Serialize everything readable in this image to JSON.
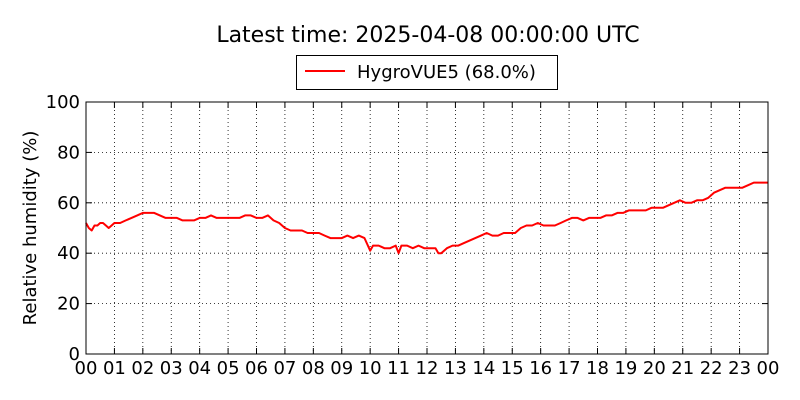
{
  "chart_data": {
    "type": "line",
    "title": "Latest time: 2025-04-08 00:00:00 UTC",
    "ylabel": "Relative humidity (%)",
    "xlabel": "",
    "ylim": [
      0,
      100
    ],
    "xlim": [
      0,
      24
    ],
    "grid": true,
    "legend_position": "top-center",
    "yticks": [
      "0",
      "20",
      "40",
      "60",
      "80",
      "100"
    ],
    "xticks": [
      "00",
      "01",
      "02",
      "03",
      "04",
      "05",
      "06",
      "07",
      "08",
      "09",
      "10",
      "11",
      "12",
      "13",
      "14",
      "15",
      "16",
      "17",
      "18",
      "19",
      "20",
      "21",
      "22",
      "23",
      "00"
    ],
    "series": [
      {
        "name": "HygroVUE5 (68.0%)",
        "color": "#ff0000",
        "x": [
          0.0,
          0.1,
          0.2,
          0.3,
          0.4,
          0.5,
          0.6,
          0.7,
          0.8,
          0.9,
          1.0,
          1.2,
          1.4,
          1.6,
          1.8,
          2.0,
          2.2,
          2.4,
          2.6,
          2.8,
          3.0,
          3.2,
          3.4,
          3.6,
          3.8,
          4.0,
          4.2,
          4.4,
          4.6,
          4.8,
          5.0,
          5.2,
          5.4,
          5.6,
          5.8,
          6.0,
          6.2,
          6.4,
          6.6,
          6.8,
          7.0,
          7.2,
          7.4,
          7.6,
          7.8,
          8.0,
          8.2,
          8.4,
          8.6,
          8.8,
          9.0,
          9.2,
          9.4,
          9.6,
          9.8,
          10.0,
          10.1,
          10.3,
          10.5,
          10.7,
          10.9,
          11.0,
          11.1,
          11.3,
          11.5,
          11.7,
          11.9,
          12.1,
          12.3,
          12.4,
          12.5,
          12.7,
          12.9,
          13.1,
          13.3,
          13.5,
          13.7,
          13.9,
          14.1,
          14.3,
          14.5,
          14.7,
          14.9,
          15.1,
          15.3,
          15.5,
          15.7,
          15.9,
          16.1,
          16.3,
          16.5,
          16.7,
          16.9,
          17.1,
          17.3,
          17.5,
          17.7,
          17.9,
          18.1,
          18.3,
          18.5,
          18.7,
          18.9,
          19.1,
          19.3,
          19.5,
          19.7,
          19.9,
          20.1,
          20.3,
          20.5,
          20.7,
          20.9,
          21.1,
          21.3,
          21.5,
          21.7,
          21.9,
          22.1,
          22.3,
          22.5,
          22.7,
          22.9,
          23.1,
          23.3,
          23.5,
          23.7,
          23.9,
          24.0
        ],
        "values": [
          52,
          50,
          49,
          51,
          51,
          52,
          52,
          51,
          50,
          51,
          52,
          52,
          53,
          54,
          55,
          56,
          56,
          56,
          55,
          54,
          54,
          54,
          53,
          53,
          53,
          54,
          54,
          55,
          54,
          54,
          54,
          54,
          54,
          55,
          55,
          54,
          54,
          55,
          53,
          52,
          50,
          49,
          49,
          49,
          48,
          48,
          48,
          47,
          46,
          46,
          46,
          47,
          46,
          47,
          46,
          41,
          43,
          43,
          42,
          42,
          43,
          40,
          43,
          43,
          42,
          43,
          42,
          42,
          42,
          40,
          40,
          42,
          43,
          43,
          44,
          45,
          46,
          47,
          48,
          47,
          47,
          48,
          48,
          48,
          50,
          51,
          51,
          52,
          51,
          51,
          51,
          52,
          53,
          54,
          54,
          53,
          54,
          54,
          54,
          55,
          55,
          56,
          56,
          57,
          57,
          57,
          57,
          58,
          58,
          58,
          59,
          60,
          61,
          60,
          60,
          61,
          61,
          62,
          64,
          65,
          66,
          66,
          66,
          66,
          67,
          68,
          68,
          68,
          68
        ]
      }
    ]
  }
}
